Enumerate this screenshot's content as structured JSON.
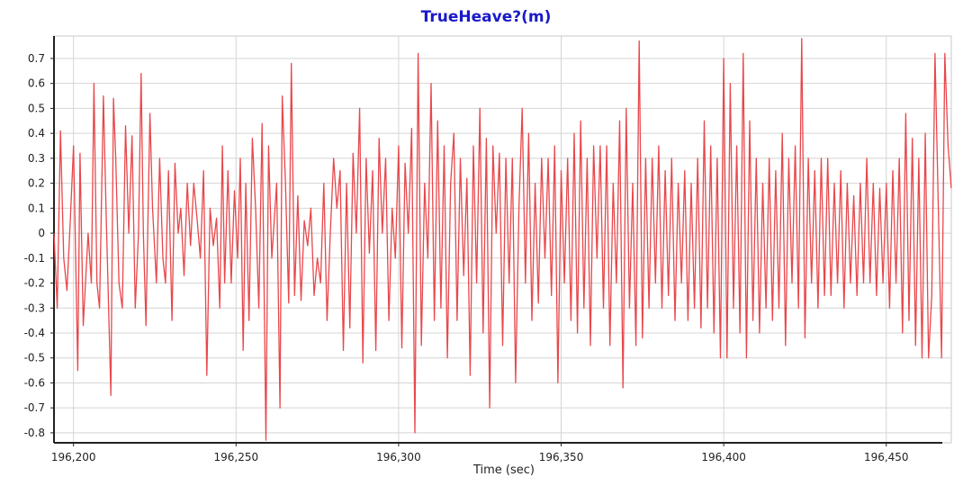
{
  "chart_data": {
    "type": "line",
    "title": "TrueHeave?(m)",
    "xlabel": "Time (sec)",
    "ylabel": "",
    "xlim": [
      196194,
      196470
    ],
    "ylim": [
      -0.84,
      0.79
    ],
    "x_ticks": [
      196200,
      196250,
      196300,
      196350,
      196400,
      196450
    ],
    "x_tick_labels": [
      "196,200",
      "196,250",
      "196,300",
      "196,350",
      "196,400",
      "196,450"
    ],
    "y_ticks": [
      0.7,
      0.6,
      0.5,
      0.4,
      0.3,
      0.2,
      0.1,
      0,
      -0.1,
      -0.2,
      -0.3,
      -0.4,
      -0.5,
      -0.6,
      -0.7,
      -0.8
    ],
    "y_tick_labels": [
      "0.7",
      "0.6",
      "0.5",
      "0.4",
      "0.3",
      "0.2",
      "0.1",
      "0",
      "-0.1",
      "-0.2",
      "-0.3",
      "-0.4",
      "-0.5",
      "-0.6",
      "-0.7",
      "-0.8"
    ],
    "grid": true,
    "legend": "none",
    "series": [
      {
        "color": "#e8474b",
        "points": [
          [
            196194.0,
            0.0
          ],
          [
            196195.0,
            -0.3
          ],
          [
            196196.0,
            0.41
          ],
          [
            196197.0,
            -0.1
          ],
          [
            196198.0,
            -0.23
          ],
          [
            196199.0,
            0.05
          ],
          [
            196200.0,
            0.35
          ],
          [
            196200.8,
            -0.2
          ],
          [
            196201.3,
            -0.55
          ],
          [
            196202.0,
            0.32
          ],
          [
            196203.0,
            -0.37
          ],
          [
            196204.5,
            0.0
          ],
          [
            196205.5,
            -0.2
          ],
          [
            196206.3,
            0.6
          ],
          [
            196207.2,
            -0.2
          ],
          [
            196208.0,
            -0.3
          ],
          [
            196209.2,
            0.55
          ],
          [
            196210.0,
            0.1
          ],
          [
            196211.5,
            -0.65
          ],
          [
            196212.3,
            0.54
          ],
          [
            196213.0,
            0.3
          ],
          [
            196214.0,
            -0.2
          ],
          [
            196215.0,
            -0.3
          ],
          [
            196216.0,
            0.43
          ],
          [
            196217.0,
            0.0
          ],
          [
            196218.0,
            0.39
          ],
          [
            196219.0,
            -0.3
          ],
          [
            196220.0,
            0.0
          ],
          [
            196220.8,
            0.64
          ],
          [
            196221.5,
            0.0
          ],
          [
            196222.3,
            -0.37
          ],
          [
            196223.5,
            0.48
          ],
          [
            196224.3,
            0.1
          ],
          [
            196225.5,
            -0.2
          ],
          [
            196226.5,
            0.3
          ],
          [
            196227.5,
            -0.1
          ],
          [
            196228.3,
            -0.2
          ],
          [
            196229.2,
            0.25
          ],
          [
            196230.3,
            -0.35
          ],
          [
            196231.2,
            0.28
          ],
          [
            196232.2,
            0.0
          ],
          [
            196233.0,
            0.1
          ],
          [
            196234.0,
            -0.17
          ],
          [
            196235.0,
            0.2
          ],
          [
            196236.0,
            -0.05
          ],
          [
            196237.0,
            0.2
          ],
          [
            196238.0,
            0.06
          ],
          [
            196239.0,
            -0.1
          ],
          [
            196240.0,
            0.25
          ],
          [
            196241.0,
            -0.57
          ],
          [
            196242.0,
            0.1
          ],
          [
            196243.0,
            -0.05
          ],
          [
            196244.0,
            0.06
          ],
          [
            196245.0,
            -0.3
          ],
          [
            196245.8,
            0.35
          ],
          [
            196246.5,
            -0.2
          ],
          [
            196247.5,
            0.25
          ],
          [
            196248.5,
            -0.2
          ],
          [
            196249.5,
            0.17
          ],
          [
            196250.5,
            -0.1
          ],
          [
            196251.3,
            0.3
          ],
          [
            196252.2,
            -0.47
          ],
          [
            196253.0,
            0.2
          ],
          [
            196254.0,
            -0.35
          ],
          [
            196255.0,
            0.38
          ],
          [
            196256.0,
            0.1
          ],
          [
            196257.0,
            -0.3
          ],
          [
            196258.0,
            0.44
          ],
          [
            196259.2,
            -0.83
          ],
          [
            196260.0,
            0.35
          ],
          [
            196261.0,
            -0.1
          ],
          [
            196262.5,
            0.2
          ],
          [
            196263.5,
            -0.7
          ],
          [
            196264.2,
            0.55
          ],
          [
            196265.2,
            0.2
          ],
          [
            196266.2,
            -0.28
          ],
          [
            196267.0,
            0.68
          ],
          [
            196268.0,
            -0.25
          ],
          [
            196269.0,
            0.15
          ],
          [
            196270.0,
            -0.27
          ],
          [
            196271.0,
            0.05
          ],
          [
            196272.0,
            -0.05
          ],
          [
            196273.0,
            0.1
          ],
          [
            196274.0,
            -0.25
          ],
          [
            196275.0,
            -0.1
          ],
          [
            196276.0,
            -0.2
          ],
          [
            196277.0,
            0.2
          ],
          [
            196278.0,
            -0.35
          ],
          [
            196279.0,
            0.0
          ],
          [
            196280.0,
            0.3
          ],
          [
            196281.0,
            0.1
          ],
          [
            196282.0,
            0.25
          ],
          [
            196283.0,
            -0.47
          ],
          [
            196284.0,
            0.2
          ],
          [
            196285.0,
            -0.38
          ],
          [
            196286.0,
            0.32
          ],
          [
            196287.0,
            0.0
          ],
          [
            196288.0,
            0.5
          ],
          [
            196289.0,
            -0.52
          ],
          [
            196290.0,
            0.3
          ],
          [
            196291.0,
            -0.08
          ],
          [
            196292.0,
            0.25
          ],
          [
            196293.0,
            -0.47
          ],
          [
            196294.0,
            0.38
          ],
          [
            196295.0,
            0.0
          ],
          [
            196296.0,
            0.3
          ],
          [
            196297.0,
            -0.35
          ],
          [
            196298.0,
            0.1
          ],
          [
            196299.0,
            -0.1
          ],
          [
            196300.0,
            0.35
          ],
          [
            196301.0,
            -0.46
          ],
          [
            196302.0,
            0.28
          ],
          [
            196303.0,
            0.0
          ],
          [
            196304.0,
            0.42
          ],
          [
            196305.0,
            -0.8
          ],
          [
            196306.0,
            0.72
          ],
          [
            196307.0,
            -0.45
          ],
          [
            196308.0,
            0.2
          ],
          [
            196309.0,
            -0.1
          ],
          [
            196310.0,
            0.6
          ],
          [
            196311.0,
            -0.35
          ],
          [
            196312.0,
            0.45
          ],
          [
            196313.0,
            -0.3
          ],
          [
            196314.0,
            0.35
          ],
          [
            196315.0,
            -0.5
          ],
          [
            196316.0,
            0.2
          ],
          [
            196317.0,
            0.4
          ],
          [
            196318.0,
            -0.35
          ],
          [
            196319.0,
            0.3
          ],
          [
            196320.0,
            -0.17
          ],
          [
            196321.0,
            0.22
          ],
          [
            196322.0,
            -0.57
          ],
          [
            196323.0,
            0.35
          ],
          [
            196324.0,
            -0.2
          ],
          [
            196325.0,
            0.5
          ],
          [
            196326.0,
            -0.4
          ],
          [
            196327.0,
            0.38
          ],
          [
            196328.0,
            -0.7
          ],
          [
            196329.0,
            0.35
          ],
          [
            196330.0,
            0.0
          ],
          [
            196331.0,
            0.32
          ],
          [
            196332.0,
            -0.45
          ],
          [
            196333.0,
            0.3
          ],
          [
            196334.0,
            -0.2
          ],
          [
            196335.0,
            0.3
          ],
          [
            196336.0,
            -0.6
          ],
          [
            196337.0,
            0.1
          ],
          [
            196338.0,
            0.5
          ],
          [
            196339.0,
            -0.2
          ],
          [
            196340.0,
            0.4
          ],
          [
            196341.0,
            -0.35
          ],
          [
            196342.0,
            0.2
          ],
          [
            196343.0,
            -0.28
          ],
          [
            196344.0,
            0.3
          ],
          [
            196345.0,
            -0.1
          ],
          [
            196346.0,
            0.3
          ],
          [
            196347.0,
            -0.25
          ],
          [
            196348.0,
            0.35
          ],
          [
            196349.0,
            -0.6
          ],
          [
            196350.0,
            0.25
          ],
          [
            196351.0,
            -0.2
          ],
          [
            196352.0,
            0.3
          ],
          [
            196353.0,
            -0.35
          ],
          [
            196354.0,
            0.4
          ],
          [
            196355.0,
            -0.4
          ],
          [
            196356.0,
            0.45
          ],
          [
            196357.0,
            -0.3
          ],
          [
            196358.0,
            0.3
          ],
          [
            196359.0,
            -0.45
          ],
          [
            196360.0,
            0.35
          ],
          [
            196361.0,
            -0.1
          ],
          [
            196362.0,
            0.35
          ],
          [
            196363.0,
            -0.3
          ],
          [
            196364.0,
            0.35
          ],
          [
            196365.0,
            -0.45
          ],
          [
            196366.0,
            0.2
          ],
          [
            196367.0,
            -0.2
          ],
          [
            196368.0,
            0.45
          ],
          [
            196369.0,
            -0.62
          ],
          [
            196370.0,
            0.5
          ],
          [
            196371.0,
            -0.3
          ],
          [
            196372.0,
            0.2
          ],
          [
            196373.0,
            -0.45
          ],
          [
            196374.0,
            0.77
          ],
          [
            196375.0,
            -0.42
          ],
          [
            196376.0,
            0.3
          ],
          [
            196377.0,
            -0.3
          ],
          [
            196378.0,
            0.3
          ],
          [
            196379.0,
            -0.2
          ],
          [
            196380.0,
            0.35
          ],
          [
            196381.0,
            -0.3
          ],
          [
            196382.0,
            0.25
          ],
          [
            196383.0,
            -0.25
          ],
          [
            196384.0,
            0.3
          ],
          [
            196385.0,
            -0.35
          ],
          [
            196386.0,
            0.2
          ],
          [
            196387.0,
            -0.2
          ],
          [
            196388.0,
            0.25
          ],
          [
            196389.0,
            -0.35
          ],
          [
            196390.0,
            0.2
          ],
          [
            196391.0,
            -0.3
          ],
          [
            196392.0,
            0.3
          ],
          [
            196393.0,
            -0.38
          ],
          [
            196394.0,
            0.45
          ],
          [
            196395.0,
            -0.3
          ],
          [
            196396.0,
            0.35
          ],
          [
            196397.0,
            -0.4
          ],
          [
            196398.0,
            0.3
          ],
          [
            196399.0,
            -0.5
          ],
          [
            196400.0,
            0.7
          ],
          [
            196401.0,
            -0.5
          ],
          [
            196402.0,
            0.6
          ],
          [
            196403.0,
            -0.3
          ],
          [
            196404.0,
            0.35
          ],
          [
            196405.0,
            -0.4
          ],
          [
            196406.0,
            0.72
          ],
          [
            196407.0,
            -0.5
          ],
          [
            196408.0,
            0.45
          ],
          [
            196409.0,
            -0.35
          ],
          [
            196410.0,
            0.3
          ],
          [
            196411.0,
            -0.4
          ],
          [
            196412.0,
            0.2
          ],
          [
            196413.0,
            -0.3
          ],
          [
            196414.0,
            0.3
          ],
          [
            196415.0,
            -0.35
          ],
          [
            196416.0,
            0.25
          ],
          [
            196417.0,
            -0.3
          ],
          [
            196418.0,
            0.4
          ],
          [
            196419.0,
            -0.45
          ],
          [
            196420.0,
            0.3
          ],
          [
            196421.0,
            -0.2
          ],
          [
            196422.0,
            0.35
          ],
          [
            196423.0,
            -0.3
          ],
          [
            196424.0,
            0.78
          ],
          [
            196425.0,
            -0.42
          ],
          [
            196426.0,
            0.3
          ],
          [
            196427.0,
            -0.2
          ],
          [
            196428.0,
            0.25
          ],
          [
            196429.0,
            -0.3
          ],
          [
            196430.0,
            0.3
          ],
          [
            196431.0,
            -0.25
          ],
          [
            196432.0,
            0.3
          ],
          [
            196433.0,
            -0.25
          ],
          [
            196434.0,
            0.2
          ],
          [
            196435.0,
            -0.2
          ],
          [
            196436.0,
            0.25
          ],
          [
            196437.0,
            -0.3
          ],
          [
            196438.0,
            0.2
          ],
          [
            196439.0,
            -0.2
          ],
          [
            196440.0,
            0.15
          ],
          [
            196441.0,
            -0.25
          ],
          [
            196442.0,
            0.2
          ],
          [
            196443.0,
            -0.2
          ],
          [
            196444.0,
            0.3
          ],
          [
            196445.0,
            -0.2
          ],
          [
            196446.0,
            0.2
          ],
          [
            196447.0,
            -0.25
          ],
          [
            196448.0,
            0.18
          ],
          [
            196449.0,
            -0.2
          ],
          [
            196450.0,
            0.2
          ],
          [
            196451.0,
            -0.3
          ],
          [
            196452.0,
            0.25
          ],
          [
            196453.0,
            -0.2
          ],
          [
            196454.0,
            0.3
          ],
          [
            196455.0,
            -0.4
          ],
          [
            196456.0,
            0.48
          ],
          [
            196457.0,
            -0.35
          ],
          [
            196458.0,
            0.38
          ],
          [
            196459.0,
            -0.45
          ],
          [
            196460.0,
            0.3
          ],
          [
            196461.0,
            -0.5
          ],
          [
            196462.0,
            0.4
          ],
          [
            196463.0,
            -0.5
          ],
          [
            196464.0,
            -0.25
          ],
          [
            196465.0,
            0.72
          ],
          [
            196466.0,
            0.1
          ],
          [
            196467.0,
            -0.5
          ],
          [
            196468.0,
            0.72
          ],
          [
            196469.0,
            0.35
          ],
          [
            196470.0,
            0.18
          ]
        ]
      }
    ]
  }
}
